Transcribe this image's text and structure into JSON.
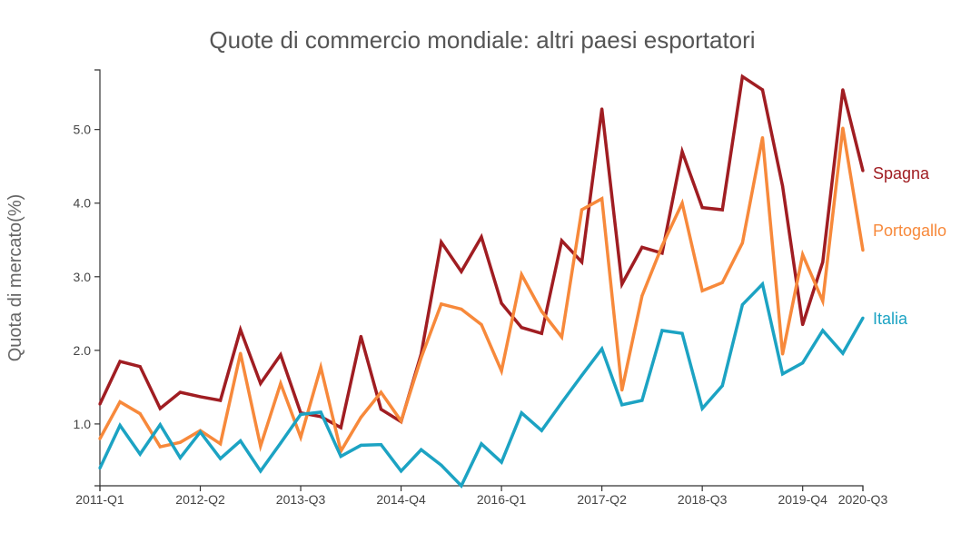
{
  "chart_data": {
    "type": "line",
    "title": "Quote di commercio mondiale: altri paesi esportatori",
    "xlabel": "",
    "ylabel": "Quota di mercato(%)",
    "x": [
      "2011-Q1",
      "2011-Q2",
      "2011-Q3",
      "2011-Q4",
      "2012-Q1",
      "2012-Q2",
      "2012-Q3",
      "2012-Q4",
      "2013-Q1",
      "2013-Q2",
      "2013-Q3",
      "2013-Q4",
      "2014-Q1",
      "2014-Q2",
      "2014-Q3",
      "2014-Q4",
      "2015-Q1",
      "2015-Q2",
      "2015-Q3",
      "2015-Q4",
      "2016-Q1",
      "2016-Q2",
      "2016-Q3",
      "2016-Q4",
      "2017-Q1",
      "2017-Q2",
      "2017-Q3",
      "2017-Q4",
      "2018-Q1",
      "2018-Q2",
      "2018-Q3",
      "2018-Q4",
      "2019-Q1",
      "2019-Q2",
      "2019-Q3",
      "2019-Q4",
      "2020-Q1",
      "2020-Q2",
      "2020-Q3"
    ],
    "x_ticks": [
      "2011-Q1",
      "2012-Q2",
      "2013-Q3",
      "2014-Q4",
      "2016-Q1",
      "2017-Q2",
      "2018-Q3",
      "2019-Q4",
      "2020-Q3"
    ],
    "y_ticks": [
      "1.0",
      "2.0",
      "3.0",
      "4.0",
      "5.0"
    ],
    "ylim": [
      0.16,
      5.81
    ],
    "grid": false,
    "legend": "right",
    "series": [
      {
        "name": "Spagna",
        "color": "#a01d22",
        "values": [
          1.27,
          1.85,
          1.78,
          1.21,
          1.43,
          1.37,
          1.32,
          2.28,
          1.55,
          1.94,
          1.15,
          1.1,
          0.95,
          2.19,
          1.2,
          1.03,
          1.95,
          3.47,
          3.07,
          3.54,
          2.64,
          2.31,
          2.23,
          3.49,
          3.2,
          5.28,
          2.9,
          3.4,
          3.32,
          4.7,
          3.94,
          3.91,
          5.72,
          5.54,
          4.23,
          2.35,
          3.2,
          5.54,
          4.44
        ]
      },
      {
        "name": "Portogallo",
        "color": "#f7893b",
        "values": [
          0.8,
          1.3,
          1.14,
          0.69,
          0.75,
          0.91,
          0.73,
          1.96,
          0.7,
          1.55,
          0.82,
          1.77,
          0.63,
          1.09,
          1.43,
          1.04,
          1.9,
          2.63,
          2.56,
          2.35,
          1.72,
          3.03,
          2.53,
          2.18,
          3.91,
          4.06,
          1.46,
          2.74,
          3.42,
          4.0,
          2.81,
          2.92,
          3.46,
          4.89,
          1.95,
          3.3,
          2.67,
          5.02,
          3.36
        ]
      },
      {
        "name": "Italia",
        "color": "#1ca3c3",
        "values": [
          0.4,
          0.98,
          0.59,
          0.99,
          0.54,
          0.89,
          0.53,
          0.77,
          0.36,
          0.74,
          1.13,
          1.16,
          0.56,
          0.71,
          0.72,
          0.36,
          0.65,
          0.44,
          0.16,
          0.73,
          0.48,
          1.15,
          0.91,
          1.29,
          1.66,
          2.02,
          1.26,
          1.32,
          2.27,
          2.23,
          1.21,
          1.52,
          2.62,
          2.9,
          1.68,
          1.83,
          2.27,
          1.96,
          2.44
        ]
      }
    ]
  }
}
